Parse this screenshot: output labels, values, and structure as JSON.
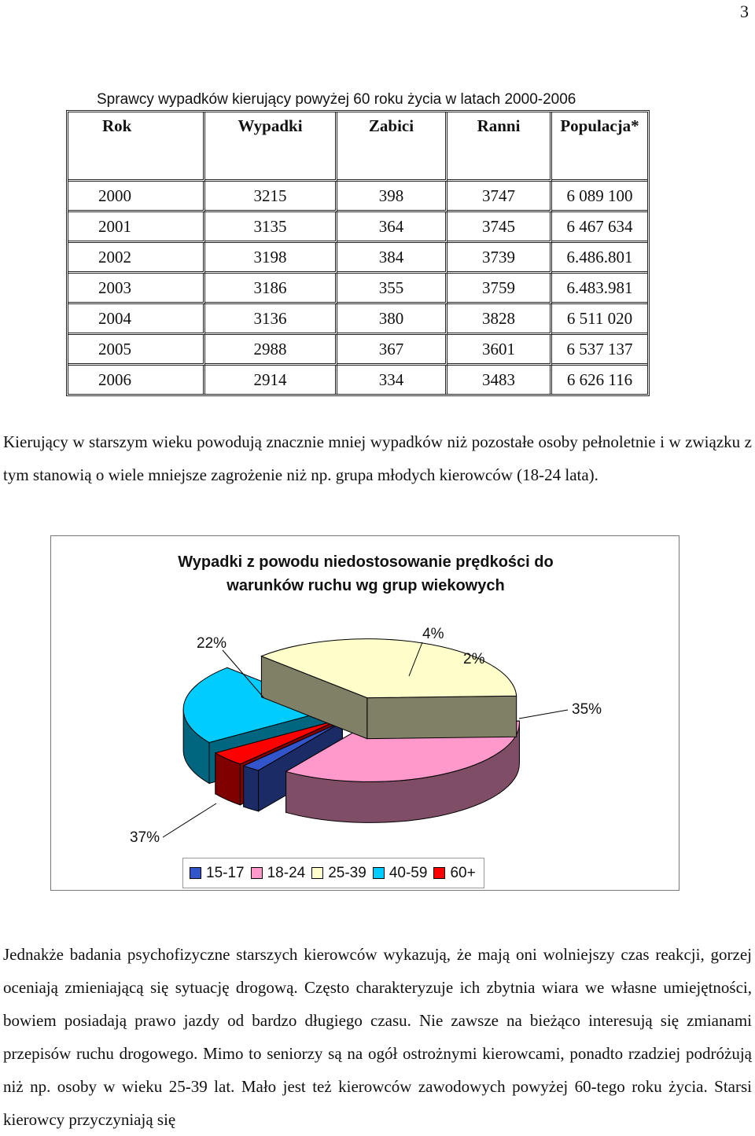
{
  "page_number": "3",
  "table": {
    "caption": "Sprawcy wypadków kierujący powyżej 60 roku życia w latach 2000-2006",
    "headers": [
      "Rok",
      "Wypadki",
      "Zabici",
      "Ranni",
      "Populacja*"
    ],
    "rows": [
      [
        "2000",
        "3215",
        "398",
        "3747",
        "6 089 100"
      ],
      [
        "2001",
        "3135",
        "364",
        "3745",
        "6 467 634"
      ],
      [
        "2002",
        "3198",
        "384",
        "3739",
        "6.486.801"
      ],
      [
        "2003",
        "3186",
        "355",
        "3759",
        "6.483.981"
      ],
      [
        "2004",
        "3136",
        "380",
        "3828",
        "6 511 020"
      ],
      [
        "2005",
        "2988",
        "367",
        "3601",
        "6 537 137"
      ],
      [
        "2006",
        "2914",
        "334",
        "3483",
        "6 626 116"
      ]
    ]
  },
  "paragraph_1": "Kierujący w starszym wieku powodują znacznie mniej wypadków niż pozostałe osoby pełnoletnie i w związku z tym stanowią o wiele mniejsze zagrożenie niż np. grupa młodych kierowców (18-24 lata).",
  "chart_data": {
    "type": "pie",
    "title_line1": "Wypadki z powodu niedostosowanie prędkości do",
    "title_line2": "warunków ruchu wg grup wiekowych",
    "categories": [
      "15-17",
      "18-24",
      "25-39",
      "40-59",
      "60+"
    ],
    "values": [
      2,
      35,
      37,
      22,
      4
    ],
    "labels": [
      "2%",
      "35%",
      "37%",
      "22%",
      "4%"
    ],
    "colors": [
      "#3355cc",
      "#ff99cc",
      "#ffffcc",
      "#00ccff",
      "#ff0000"
    ],
    "legend_position": "bottom"
  },
  "paragraph_2": "Jednakże badania psychofizyczne starszych kierowców wykazują, że mają oni wolniejszy czas reakcji, gorzej oceniają zmieniającą się sytuację drogową. Często charakteryzuje ich zbytnia wiara we własne umiejętności, bowiem posiadają prawo jazdy od bardzo długiego czasu. Nie zawsze na bieżąco interesują się zmianami przepisów ruchu drogowego. Mimo to seniorzy są na ogół ostrożnymi kierowcami, ponadto rzadziej podróżują niż np. osoby w wieku 25-39 lat. Mało jest też kierowców zawodowych powyżej 60-tego roku życia. Starsi kierowcy przyczyniają się"
}
